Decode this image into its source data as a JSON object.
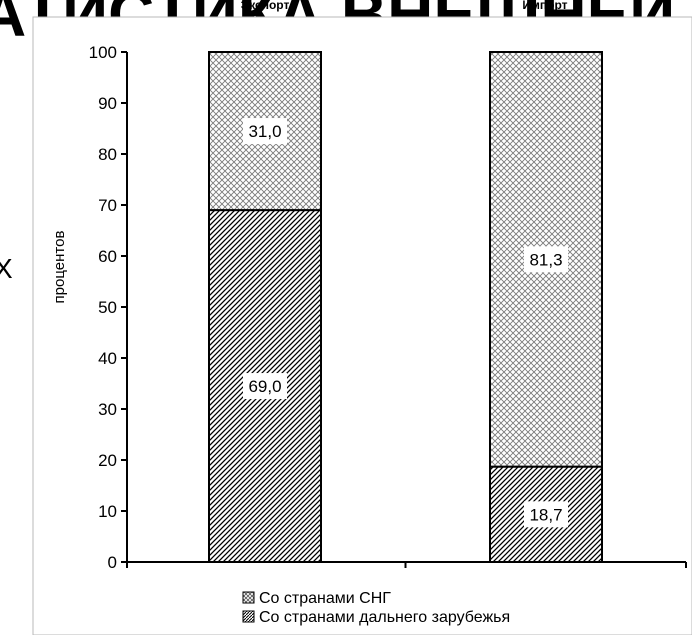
{
  "background_title": "АТИСТИКА ВНЕШНЕЙ ТОРГ",
  "left_edge_char": "X",
  "chart_data": {
    "type": "bar",
    "stacked": true,
    "categories": [
      "Экспорт",
      "Импорт"
    ],
    "ylabel": "процентов",
    "ylim": [
      0,
      100
    ],
    "yticks": [
      0,
      10,
      20,
      30,
      40,
      50,
      60,
      70,
      80,
      90,
      100
    ],
    "series": [
      {
        "name": "Со странами дальнего зарубежья",
        "values": [
          69.0,
          18.7
        ],
        "labels": [
          "69,0",
          "18,7"
        ],
        "pattern": "diagonal-hatch"
      },
      {
        "name": "Со странами СНГ",
        "values": [
          31.0,
          81.3
        ],
        "labels": [
          "31,0",
          "81,3"
        ],
        "pattern": "crosshatch"
      }
    ],
    "legend": {
      "position": "bottom",
      "entries": [
        "Со странами СНГ",
        "Со странами дальнего зарубежья"
      ]
    },
    "grid": false
  }
}
